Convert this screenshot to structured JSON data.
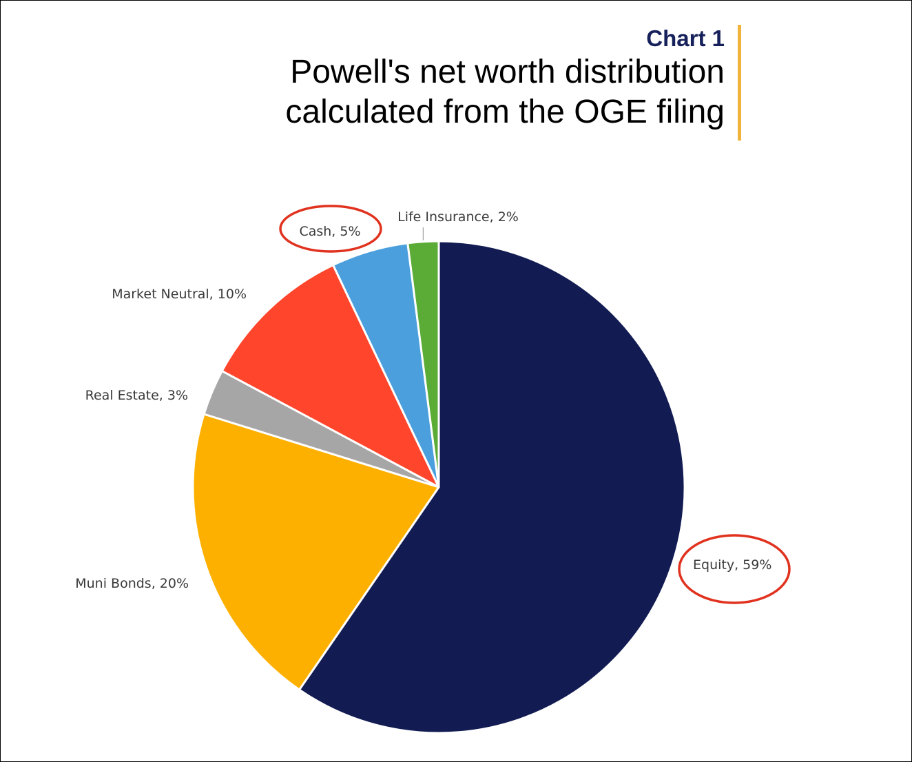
{
  "header": {
    "kicker": "Chart 1",
    "title_line1": "Powell's net worth distribution",
    "title_line2": "calculated from the OGE filing"
  },
  "colors": {
    "kicker": "#16205a",
    "accent_bar": "#f0b43c",
    "highlight_circle": "#e0321e"
  },
  "chart_data": {
    "type": "pie",
    "unit": "%",
    "slices": [
      {
        "label": "Equity",
        "value": 59,
        "display": "Equity, 59%",
        "color": "#121c52",
        "highlighted": true
      },
      {
        "label": "Muni Bonds",
        "value": 20,
        "display": "Muni Bonds, 20%",
        "color": "#fdb000",
        "highlighted": false
      },
      {
        "label": "Real Estate",
        "value": 3,
        "display": "Real Estate, 3%",
        "color": "#a6a6a6",
        "highlighted": false
      },
      {
        "label": "Market Neutral",
        "value": 10,
        "display": "Market Neutral, 10%",
        "color": "#ff452b",
        "highlighted": false
      },
      {
        "label": "Cash",
        "value": 5,
        "display": "Cash, 5%",
        "color": "#4a9fdc",
        "highlighted": true
      },
      {
        "label": "Life Insurance",
        "value": 2,
        "display": "Life Insurance, 2%",
        "color": "#5aac36",
        "highlighted": false
      }
    ],
    "start": "12 o'clock",
    "direction": "clockwise",
    "legend": "none",
    "data_labels": "outside"
  }
}
